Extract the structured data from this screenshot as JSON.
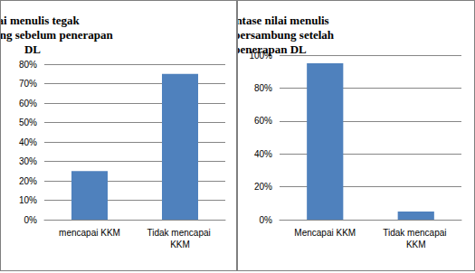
{
  "chart_data": [
    {
      "type": "bar",
      "title": "Nilai menulis tegak bersambung sebelum penerapan DL",
      "categories": [
        "mencapai KKM",
        "Tidak mencapai KKM"
      ],
      "values": [
        25,
        75
      ],
      "color": "#4f81bd",
      "ylim": [
        0,
        80
      ],
      "yticks": [
        {
          "value": 0,
          "label": "0%"
        },
        {
          "value": 10,
          "label": "10%"
        },
        {
          "value": 20,
          "label": "20%"
        },
        {
          "value": 30,
          "label": "30%"
        },
        {
          "value": 40,
          "label": "40%"
        },
        {
          "value": 50,
          "label": "50%"
        },
        {
          "value": 60,
          "label": "60%"
        },
        {
          "value": 70,
          "label": "70%"
        },
        {
          "value": 80,
          "label": "80%"
        }
      ],
      "grid": true
    },
    {
      "type": "bar",
      "title": "Persentase nilai menulis tegak bersambung setelah penerapan DL",
      "categories": [
        "Mencapai KKM",
        "Tidak mencapai KKM"
      ],
      "values": [
        95,
        5
      ],
      "color": "#4f81bd",
      "ylim": [
        0,
        100
      ],
      "yticks": [
        {
          "value": 0,
          "label": "0%"
        },
        {
          "value": 20,
          "label": "20%"
        },
        {
          "value": 40,
          "label": "40%"
        },
        {
          "value": 60,
          "label": "60%"
        },
        {
          "value": 80,
          "label": "80%"
        },
        {
          "value": 100,
          "label": "100%"
        }
      ],
      "grid": true
    }
  ]
}
